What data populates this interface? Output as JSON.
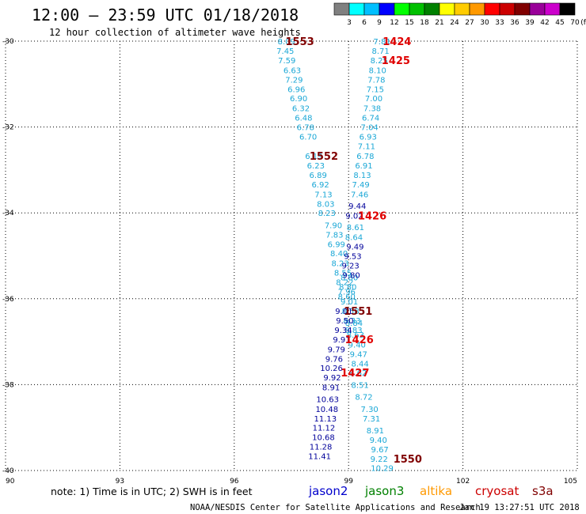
{
  "title": "12:00 – 23:59 UTC 01/18/2018",
  "subtitle": "12 hour collection of altimeter wave heights",
  "note": "note:  1) Time is in UTC; 2) SWH is in feet",
  "footer_left": "NOAA/NESDIS Center for Satellite Applications and Research",
  "footer_right": "Jan 19 13:27:51 UTC 2018",
  "colorbar": {
    "labels": [
      "3",
      "6",
      "9",
      "12",
      "15",
      "18",
      "21",
      "24",
      "27",
      "30",
      "33",
      "36",
      "39",
      "42",
      "45",
      "70",
      "(ft)"
    ],
    "colors": [
      "#808080",
      "#00ffff",
      "#00bfff",
      "#0000ff",
      "#00ff00",
      "#00c000",
      "#008000",
      "#ffff00",
      "#ffcc00",
      "#ff9900",
      "#ff0000",
      "#cc0000",
      "#800000",
      "#990099",
      "#cc00cc",
      "#000000"
    ]
  },
  "legend": [
    {
      "name": "jason2",
      "color": "#0000cc"
    },
    {
      "name": "jason3",
      "color": "#008000"
    },
    {
      "name": "altika",
      "color": "#ff9900"
    },
    {
      "name": "cryosat",
      "color": "#cc0000"
    },
    {
      "name": "s3a",
      "color": "#800000"
    }
  ],
  "chart_data": {
    "type": "scatter",
    "xlim": [
      90,
      105
    ],
    "ylim": [
      -40,
      -30
    ],
    "xticks": [
      "90",
      "93",
      "96",
      "99",
      "102",
      "105"
    ],
    "yticks": [
      "-30",
      "-32",
      "-34",
      "-36",
      "-38",
      "-40"
    ],
    "grid": true,
    "series": [
      {
        "color": "#1aa7d6",
        "points": [
          [
            97.37,
            -30.0,
            "8.09"
          ],
          [
            97.34,
            -30.22,
            "7.45"
          ],
          [
            97.38,
            -30.44,
            "7.59"
          ],
          [
            97.52,
            -30.67,
            "6.63"
          ],
          [
            97.57,
            -30.89,
            "7.29"
          ],
          [
            97.63,
            -31.11,
            "6.96"
          ],
          [
            97.69,
            -31.33,
            "6.90"
          ],
          [
            97.75,
            -31.56,
            "6.32"
          ],
          [
            97.82,
            -31.78,
            "6.48"
          ],
          [
            97.87,
            -32.0,
            "6.78"
          ],
          [
            97.94,
            -32.22,
            "6.70"
          ],
          [
            98.09,
            -32.67,
            "6.19"
          ],
          [
            98.14,
            -32.89,
            "6.23"
          ],
          [
            98.2,
            -33.11,
            "6.89"
          ],
          [
            98.26,
            -33.33,
            "6.92"
          ],
          [
            98.34,
            -33.56,
            "7.13"
          ],
          [
            98.4,
            -33.78,
            "8.03"
          ],
          [
            98.43,
            -34.0,
            "8.23"
          ],
          [
            98.6,
            -34.28,
            "7.90"
          ],
          [
            98.63,
            -34.5,
            "7.83"
          ],
          [
            98.68,
            -34.72,
            "6.99"
          ],
          [
            98.75,
            -34.94,
            "8.40"
          ],
          [
            98.78,
            -35.17,
            "8.23"
          ],
          [
            98.85,
            -35.39,
            "8.55"
          ],
          [
            98.9,
            -35.61,
            "8.22"
          ],
          [
            98.95,
            -35.83,
            "7.96"
          ],
          [
            99.02,
            -36.06,
            "9.01"
          ],
          [
            99.05,
            -36.28,
            "8.58"
          ],
          [
            99.09,
            -36.5,
            "8.33"
          ],
          [
            99.13,
            -36.72,
            "8.83"
          ],
          [
            99.88,
            -30.0,
            "7.81"
          ],
          [
            99.84,
            -30.22,
            "8.71"
          ],
          [
            99.8,
            -30.44,
            "8.25"
          ],
          [
            99.76,
            -30.67,
            "8.10"
          ],
          [
            99.73,
            -30.89,
            "7.78"
          ],
          [
            99.7,
            -31.11,
            "7.15"
          ],
          [
            99.66,
            -31.33,
            "7.00"
          ],
          [
            99.62,
            -31.56,
            "7.38"
          ],
          [
            99.58,
            -31.78,
            "6.74"
          ],
          [
            99.55,
            -32.0,
            "7.04"
          ],
          [
            99.51,
            -32.22,
            "6.93"
          ],
          [
            99.47,
            -32.44,
            "7.11"
          ],
          [
            99.44,
            -32.67,
            "6.78"
          ],
          [
            99.4,
            -32.89,
            "6.91"
          ],
          [
            99.36,
            -33.11,
            "8.13"
          ],
          [
            99.32,
            -33.33,
            "7.49"
          ],
          [
            99.29,
            -33.56,
            "7.46"
          ],
          [
            99.18,
            -34.33,
            "8.61"
          ],
          [
            99.14,
            -34.56,
            "8.64"
          ],
          [
            99.02,
            -35.5,
            "8.80"
          ],
          [
            98.98,
            -35.72,
            "8.80"
          ],
          [
            98.95,
            -35.94,
            "8.60"
          ],
          [
            99.14,
            -36.56,
            "8.84"
          ],
          [
            99.18,
            -36.83,
            "8.63"
          ],
          [
            99.22,
            -37.06,
            "9.40"
          ],
          [
            99.26,
            -37.28,
            "9.47"
          ],
          [
            99.3,
            -37.5,
            "8.44"
          ],
          [
            99.25,
            -37.72,
            "8.62"
          ],
          [
            99.3,
            -38.0,
            "8.51"
          ],
          [
            99.4,
            -38.28,
            "8.72"
          ],
          [
            99.55,
            -38.56,
            "7.30"
          ],
          [
            99.6,
            -38.78,
            "7.31"
          ],
          [
            99.7,
            -39.06,
            "8.91"
          ],
          [
            99.78,
            -39.28,
            "9.40"
          ],
          [
            99.82,
            -39.5,
            "9.67"
          ],
          [
            99.8,
            -39.72,
            "9.22"
          ],
          [
            99.88,
            -39.94,
            "10.29"
          ]
        ]
      },
      {
        "color": "#00009a",
        "points": [
          [
            99.23,
            -33.83,
            "9.44"
          ],
          [
            99.15,
            -34.06,
            "9.02"
          ],
          [
            99.17,
            -34.78,
            "9.49"
          ],
          [
            99.11,
            -35.0,
            "9.53"
          ],
          [
            99.05,
            -35.22,
            "9.23"
          ],
          [
            99.07,
            -35.44,
            "9.80"
          ],
          [
            98.88,
            -36.28,
            "9.01"
          ],
          [
            98.9,
            -36.5,
            "9.50"
          ],
          [
            98.86,
            -36.72,
            "9.34"
          ],
          [
            98.82,
            -36.94,
            "9.91"
          ],
          [
            98.68,
            -37.17,
            "9.79"
          ],
          [
            98.62,
            -37.39,
            "9.76"
          ],
          [
            98.55,
            -37.61,
            "10.26"
          ],
          [
            98.57,
            -37.83,
            "9.92"
          ],
          [
            98.54,
            -38.06,
            "8.91"
          ],
          [
            98.45,
            -38.33,
            "10.63"
          ],
          [
            98.43,
            -38.56,
            "10.48"
          ],
          [
            98.39,
            -38.78,
            "11.13"
          ],
          [
            98.35,
            -39.0,
            "11.12"
          ],
          [
            98.34,
            -39.22,
            "10.68"
          ],
          [
            98.27,
            -39.44,
            "11.28"
          ],
          [
            98.24,
            -39.66,
            "11.41"
          ]
        ]
      }
    ],
    "pass_labels": [
      {
        "text": "1553",
        "x": 97.72,
        "y": -30.0,
        "color": "#800000"
      },
      {
        "text": "1424",
        "x": 100.27,
        "y": -30.0,
        "color": "#e00000"
      },
      {
        "text": "1425",
        "x": 100.24,
        "y": -30.44,
        "color": "#e00000"
      },
      {
        "text": "1552",
        "x": 98.35,
        "y": -32.67,
        "color": "#800000"
      },
      {
        "text": "1426",
        "x": 99.62,
        "y": -34.06,
        "color": "#e00000"
      },
      {
        "text": "1551",
        "x": 99.25,
        "y": -36.28,
        "color": "#800000"
      },
      {
        "text": "1426",
        "x": 99.28,
        "y": -36.94,
        "color": "#e00000"
      },
      {
        "text": "1427",
        "x": 99.17,
        "y": -37.72,
        "color": "#e00000"
      },
      {
        "text": "1550",
        "x": 100.55,
        "y": -39.72,
        "color": "#800000"
      }
    ]
  }
}
